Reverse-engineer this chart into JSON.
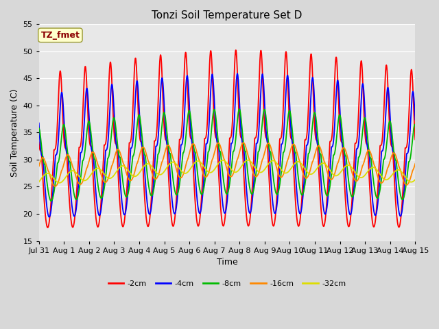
{
  "title": "Tonzi Soil Temperature Set D",
  "xlabel": "Time",
  "ylabel": "Soil Temperature (C)",
  "xlim_days": [
    0,
    15
  ],
  "ylim": [
    15,
    55
  ],
  "yticks": [
    15,
    20,
    25,
    30,
    35,
    40,
    45,
    50,
    55
  ],
  "fig_bg_color": "#d8d8d8",
  "plot_bg_color": "#e8e8e8",
  "legend_label": "TZ_fmet",
  "legend_text_color": "#8b0000",
  "legend_box_facecolor": "#ffffcc",
  "legend_box_edgecolor": "#999933",
  "lines": [
    {
      "label": "-2cm",
      "color": "#ff0000",
      "mean": 32.0,
      "amplitude": 14.5,
      "phase": 0.0,
      "n": 4.0
    },
    {
      "label": "-4cm",
      "color": "#0000ff",
      "mean": 31.0,
      "amplitude": 11.5,
      "phase": 0.06,
      "n": 3.5
    },
    {
      "label": "-8cm",
      "color": "#00bb00",
      "mean": 29.5,
      "amplitude": 7.0,
      "phase": 0.14,
      "n": 2.5
    },
    {
      "label": "-16cm",
      "color": "#ff8800",
      "mean": 28.0,
      "amplitude": 2.8,
      "phase": 0.3,
      "n": 1.5
    },
    {
      "label": "-32cm",
      "color": "#dddd00",
      "mean": 26.8,
      "amplitude": 1.0,
      "phase": 0.48,
      "n": 1.0
    }
  ],
  "xtick_labels": [
    "Jul 31",
    "Aug 1",
    "Aug 2",
    "Aug 3",
    "Aug 4",
    "Aug 5",
    "Aug 6",
    "Aug 7",
    "Aug 8",
    "Aug 9",
    "Aug 10",
    "Aug 11",
    "Aug 12",
    "Aug 13",
    "Aug 14",
    "Aug 15"
  ],
  "xtick_positions": [
    0,
    1,
    2,
    3,
    4,
    5,
    6,
    7,
    8,
    9,
    10,
    11,
    12,
    13,
    14,
    15
  ],
  "title_fontsize": 11,
  "axis_label_fontsize": 9,
  "tick_fontsize": 8,
  "linewidth": 1.3
}
